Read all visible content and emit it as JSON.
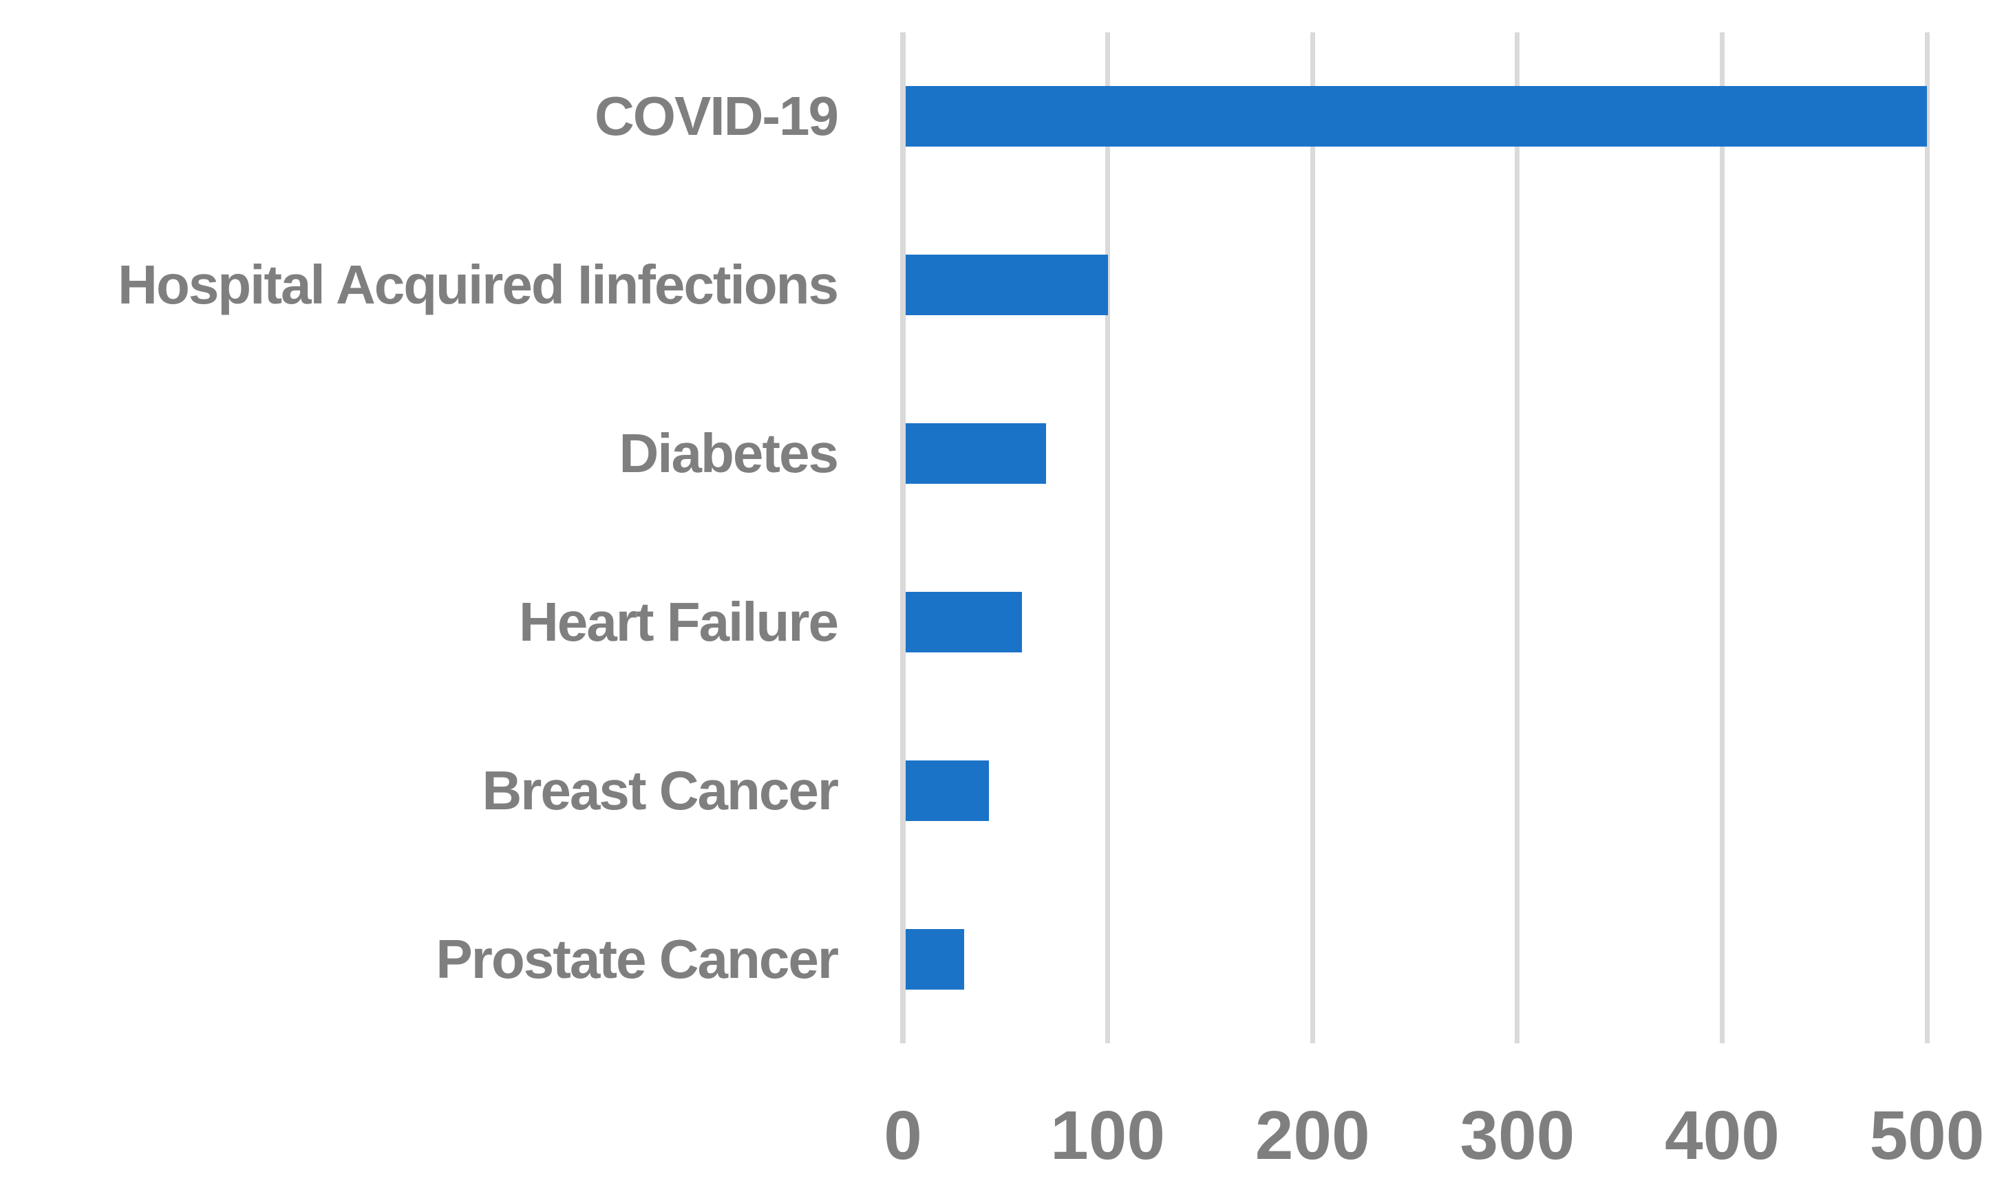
{
  "chart_data": {
    "type": "bar",
    "orientation": "horizontal",
    "categories": [
      "COVID-19",
      "Hospital Acquired Iinfections",
      "Diabetes",
      "Heart Failure",
      "Breast Cancer",
      "Prostate Cancer"
    ],
    "values": [
      500,
      100,
      70,
      58,
      42,
      30
    ],
    "x_ticks": [
      "0",
      "100",
      "200",
      "300",
      "400",
      "500"
    ],
    "xlim": [
      0,
      500
    ],
    "grid": true,
    "legend_position": "none",
    "colors": {
      "bar": "#1b73c8",
      "gridline": "#dadada",
      "axis_line": "#d9d9d9",
      "text": "#7f7f7f",
      "background": "#ffffff"
    }
  }
}
